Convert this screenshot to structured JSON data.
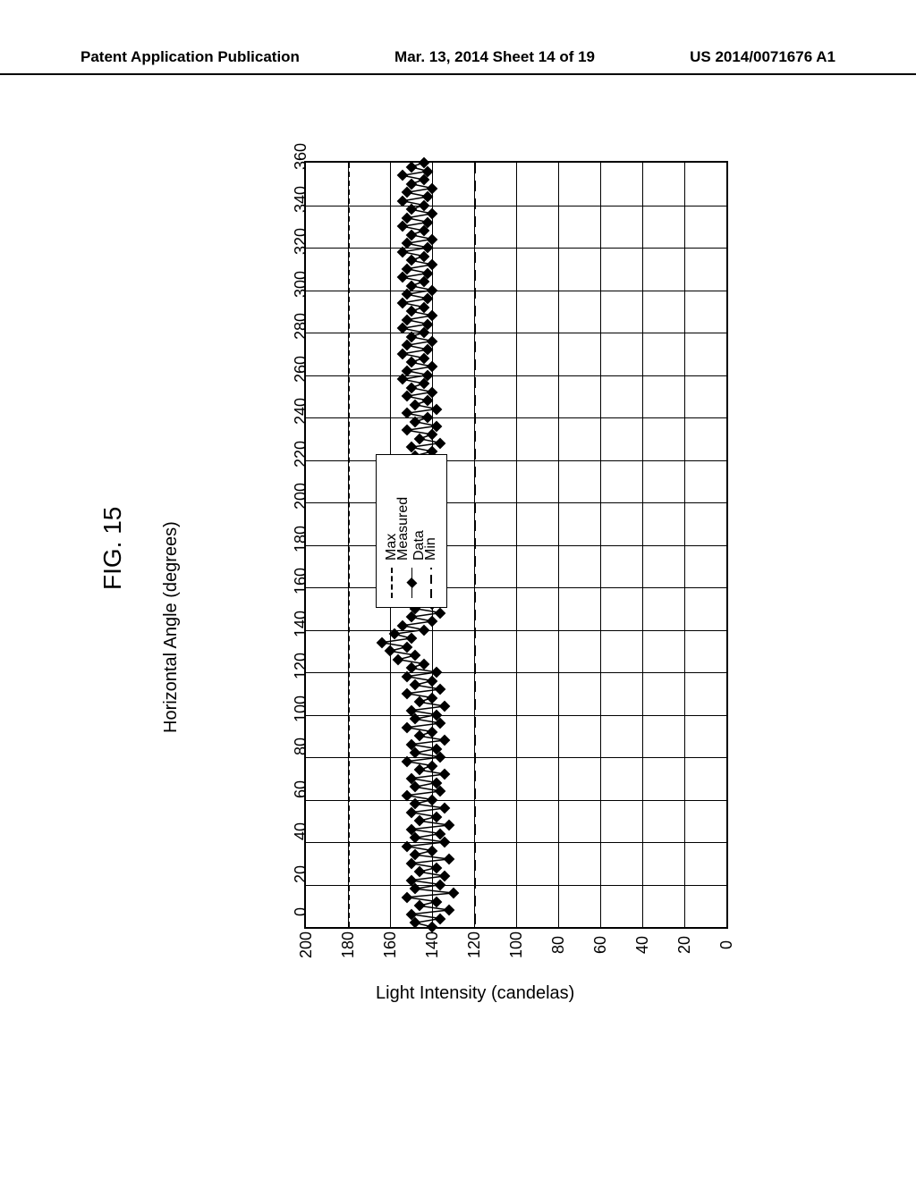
{
  "header": {
    "left": "Patent Application Publication",
    "center": "Mar. 13, 2014  Sheet 14 of 19",
    "right": "US 2014/0071676 A1"
  },
  "figure_label": "FIG. 15",
  "chart": {
    "type": "scatter-line",
    "orientation": "rotated-90-ccw",
    "xlabel": "Horizontal Angle (degrees)",
    "ylabel": "Light Intensity (candelas)",
    "x_ticks": [
      0,
      20,
      40,
      60,
      80,
      100,
      120,
      140,
      160,
      180,
      200,
      220,
      240,
      260,
      280,
      300,
      320,
      340,
      360
    ],
    "y_ticks": [
      0,
      20,
      40,
      60,
      80,
      100,
      120,
      140,
      160,
      180,
      200
    ],
    "xlim": [
      0,
      360
    ],
    "ylim": [
      0,
      200
    ],
    "max_line_y": 180,
    "min_line_y": 120,
    "background_color": "#ffffff",
    "grid_color": "#000000",
    "series_color": "#000000",
    "marker": "diamond",
    "marker_size": 9,
    "line_width": 1.5,
    "label_fontsize": 20,
    "tick_fontsize": 18,
    "legend": {
      "items": [
        {
          "label": "Max",
          "style": "short-dash"
        },
        {
          "label": "Measured Data",
          "style": "line-diamond"
        },
        {
          "label": "Min",
          "style": "long-dash"
        }
      ]
    },
    "measured_data": [
      {
        "x": 0,
        "y": 140
      },
      {
        "x": 2,
        "y": 148
      },
      {
        "x": 4,
        "y": 136
      },
      {
        "x": 6,
        "y": 150
      },
      {
        "x": 8,
        "y": 132
      },
      {
        "x": 10,
        "y": 146
      },
      {
        "x": 12,
        "y": 138
      },
      {
        "x": 14,
        "y": 152
      },
      {
        "x": 16,
        "y": 130
      },
      {
        "x": 18,
        "y": 148
      },
      {
        "x": 20,
        "y": 136
      },
      {
        "x": 22,
        "y": 150
      },
      {
        "x": 24,
        "y": 134
      },
      {
        "x": 26,
        "y": 146
      },
      {
        "x": 28,
        "y": 138
      },
      {
        "x": 30,
        "y": 150
      },
      {
        "x": 32,
        "y": 132
      },
      {
        "x": 34,
        "y": 148
      },
      {
        "x": 36,
        "y": 140
      },
      {
        "x": 38,
        "y": 152
      },
      {
        "x": 40,
        "y": 134
      },
      {
        "x": 42,
        "y": 148
      },
      {
        "x": 44,
        "y": 136
      },
      {
        "x": 46,
        "y": 150
      },
      {
        "x": 48,
        "y": 132
      },
      {
        "x": 50,
        "y": 146
      },
      {
        "x": 52,
        "y": 138
      },
      {
        "x": 54,
        "y": 150
      },
      {
        "x": 56,
        "y": 134
      },
      {
        "x": 58,
        "y": 148
      },
      {
        "x": 60,
        "y": 140
      },
      {
        "x": 62,
        "y": 152
      },
      {
        "x": 64,
        "y": 136
      },
      {
        "x": 66,
        "y": 148
      },
      {
        "x": 68,
        "y": 138
      },
      {
        "x": 70,
        "y": 150
      },
      {
        "x": 72,
        "y": 134
      },
      {
        "x": 74,
        "y": 146
      },
      {
        "x": 76,
        "y": 140
      },
      {
        "x": 78,
        "y": 152
      },
      {
        "x": 80,
        "y": 136
      },
      {
        "x": 82,
        "y": 148
      },
      {
        "x": 84,
        "y": 138
      },
      {
        "x": 86,
        "y": 150
      },
      {
        "x": 88,
        "y": 134
      },
      {
        "x": 90,
        "y": 146
      },
      {
        "x": 92,
        "y": 140
      },
      {
        "x": 94,
        "y": 152
      },
      {
        "x": 96,
        "y": 136
      },
      {
        "x": 98,
        "y": 148
      },
      {
        "x": 100,
        "y": 138
      },
      {
        "x": 102,
        "y": 150
      },
      {
        "x": 104,
        "y": 134
      },
      {
        "x": 106,
        "y": 146
      },
      {
        "x": 108,
        "y": 140
      },
      {
        "x": 110,
        "y": 152
      },
      {
        "x": 112,
        "y": 136
      },
      {
        "x": 114,
        "y": 148
      },
      {
        "x": 116,
        "y": 140
      },
      {
        "x": 118,
        "y": 152
      },
      {
        "x": 120,
        "y": 138
      },
      {
        "x": 122,
        "y": 150
      },
      {
        "x": 124,
        "y": 144
      },
      {
        "x": 126,
        "y": 156
      },
      {
        "x": 128,
        "y": 148
      },
      {
        "x": 130,
        "y": 160
      },
      {
        "x": 132,
        "y": 152
      },
      {
        "x": 134,
        "y": 164
      },
      {
        "x": 136,
        "y": 150
      },
      {
        "x": 138,
        "y": 158
      },
      {
        "x": 140,
        "y": 144
      },
      {
        "x": 142,
        "y": 154
      },
      {
        "x": 144,
        "y": 140
      },
      {
        "x": 146,
        "y": 150
      },
      {
        "x": 148,
        "y": 136
      },
      {
        "x": 150,
        "y": 148
      },
      {
        "x": 152,
        "y": 140
      },
      {
        "x": 154,
        "y": 152
      },
      {
        "x": 156,
        "y": 138
      },
      {
        "x": 158,
        "y": 148
      },
      {
        "x": 160,
        "y": 140
      },
      {
        "x": 162,
        "y": 150
      },
      {
        "x": 164,
        "y": 136
      },
      {
        "x": 166,
        "y": 148
      },
      {
        "x": 168,
        "y": 140
      },
      {
        "x": 170,
        "y": 152
      },
      {
        "x": 172,
        "y": 138
      },
      {
        "x": 174,
        "y": 148
      },
      {
        "x": 176,
        "y": 140
      },
      {
        "x": 178,
        "y": 150
      },
      {
        "x": 180,
        "y": 136
      },
      {
        "x": 182,
        "y": 146
      },
      {
        "x": 184,
        "y": 140
      },
      {
        "x": 186,
        "y": 152
      },
      {
        "x": 188,
        "y": 138
      },
      {
        "x": 190,
        "y": 148
      },
      {
        "x": 192,
        "y": 140
      },
      {
        "x": 194,
        "y": 150
      },
      {
        "x": 196,
        "y": 136
      },
      {
        "x": 198,
        "y": 146
      },
      {
        "x": 200,
        "y": 140
      },
      {
        "x": 202,
        "y": 152
      },
      {
        "x": 204,
        "y": 138
      },
      {
        "x": 206,
        "y": 148
      },
      {
        "x": 208,
        "y": 140
      },
      {
        "x": 210,
        "y": 150
      },
      {
        "x": 212,
        "y": 136
      },
      {
        "x": 214,
        "y": 146
      },
      {
        "x": 216,
        "y": 140
      },
      {
        "x": 218,
        "y": 152
      },
      {
        "x": 220,
        "y": 138
      },
      {
        "x": 222,
        "y": 148
      },
      {
        "x": 224,
        "y": 140
      },
      {
        "x": 226,
        "y": 150
      },
      {
        "x": 228,
        "y": 136
      },
      {
        "x": 230,
        "y": 146
      },
      {
        "x": 232,
        "y": 140
      },
      {
        "x": 234,
        "y": 152
      },
      {
        "x": 236,
        "y": 138
      },
      {
        "x": 238,
        "y": 148
      },
      {
        "x": 240,
        "y": 142
      },
      {
        "x": 242,
        "y": 152
      },
      {
        "x": 244,
        "y": 138
      },
      {
        "x": 246,
        "y": 148
      },
      {
        "x": 248,
        "y": 142
      },
      {
        "x": 250,
        "y": 152
      },
      {
        "x": 252,
        "y": 140
      },
      {
        "x": 254,
        "y": 150
      },
      {
        "x": 256,
        "y": 144
      },
      {
        "x": 258,
        "y": 154
      },
      {
        "x": 260,
        "y": 142
      },
      {
        "x": 262,
        "y": 152
      },
      {
        "x": 264,
        "y": 140
      },
      {
        "x": 266,
        "y": 150
      },
      {
        "x": 268,
        "y": 144
      },
      {
        "x": 270,
        "y": 154
      },
      {
        "x": 272,
        "y": 142
      },
      {
        "x": 274,
        "y": 152
      },
      {
        "x": 276,
        "y": 140
      },
      {
        "x": 278,
        "y": 150
      },
      {
        "x": 280,
        "y": 144
      },
      {
        "x": 282,
        "y": 154
      },
      {
        "x": 284,
        "y": 142
      },
      {
        "x": 286,
        "y": 152
      },
      {
        "x": 288,
        "y": 140
      },
      {
        "x": 290,
        "y": 150
      },
      {
        "x": 292,
        "y": 144
      },
      {
        "x": 294,
        "y": 154
      },
      {
        "x": 296,
        "y": 142
      },
      {
        "x": 298,
        "y": 152
      },
      {
        "x": 300,
        "y": 140
      },
      {
        "x": 302,
        "y": 150
      },
      {
        "x": 304,
        "y": 144
      },
      {
        "x": 306,
        "y": 154
      },
      {
        "x": 308,
        "y": 142
      },
      {
        "x": 310,
        "y": 152
      },
      {
        "x": 312,
        "y": 140
      },
      {
        "x": 314,
        "y": 150
      },
      {
        "x": 316,
        "y": 144
      },
      {
        "x": 318,
        "y": 154
      },
      {
        "x": 320,
        "y": 142
      },
      {
        "x": 322,
        "y": 152
      },
      {
        "x": 324,
        "y": 140
      },
      {
        "x": 326,
        "y": 150
      },
      {
        "x": 328,
        "y": 144
      },
      {
        "x": 330,
        "y": 154
      },
      {
        "x": 332,
        "y": 142
      },
      {
        "x": 334,
        "y": 152
      },
      {
        "x": 336,
        "y": 140
      },
      {
        "x": 338,
        "y": 150
      },
      {
        "x": 340,
        "y": 144
      },
      {
        "x": 342,
        "y": 154
      },
      {
        "x": 344,
        "y": 142
      },
      {
        "x": 346,
        "y": 152
      },
      {
        "x": 348,
        "y": 140
      },
      {
        "x": 350,
        "y": 150
      },
      {
        "x": 352,
        "y": 144
      },
      {
        "x": 354,
        "y": 154
      },
      {
        "x": 356,
        "y": 142
      },
      {
        "x": 358,
        "y": 150
      },
      {
        "x": 360,
        "y": 144
      }
    ]
  }
}
